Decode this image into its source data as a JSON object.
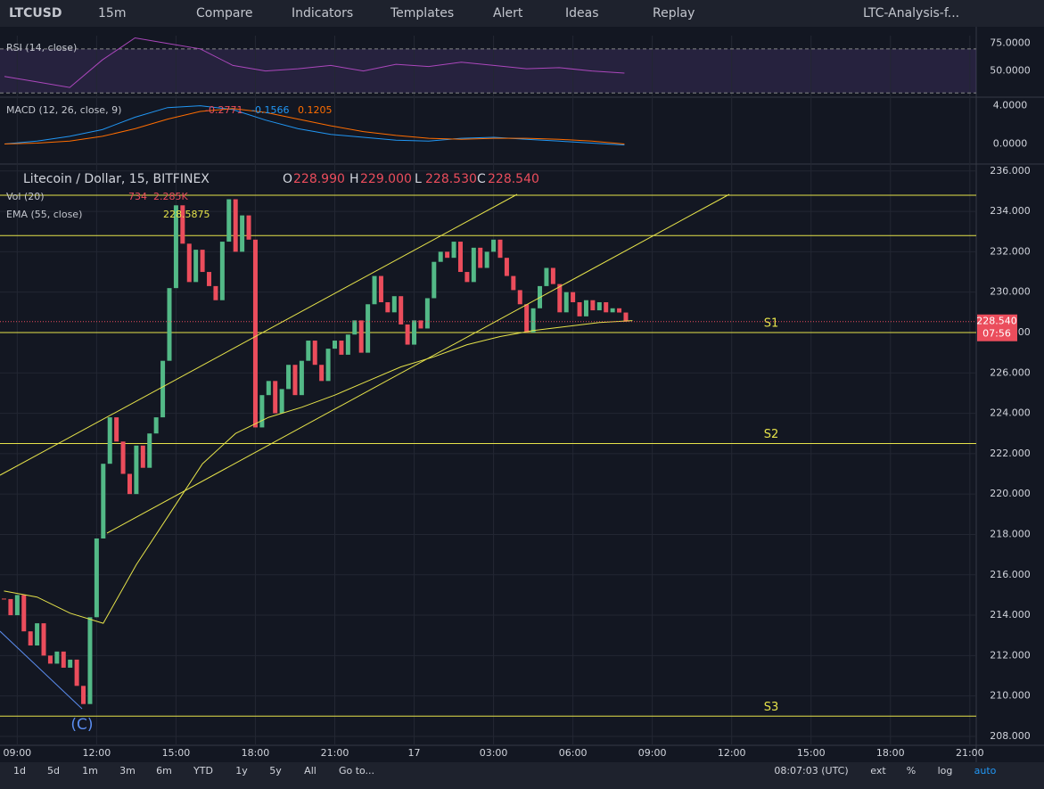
{
  "toolbar": {
    "symbol": "LTCUSD",
    "interval": "15m",
    "items": [
      "Compare",
      "Indicators",
      "Templates",
      "Alert",
      "Ideas",
      "Replay"
    ],
    "layout": "LTC-Analysis-f..."
  },
  "rsi": {
    "title": "RSI (14, close)",
    "values": [
      45,
      40,
      35,
      60,
      80,
      75,
      70,
      55,
      50,
      52,
      55,
      50,
      56,
      54,
      58,
      55,
      52,
      53,
      50,
      48
    ],
    "ylim": [
      27,
      82
    ],
    "yticks": [
      {
        "value": 75,
        "label": "75.0000"
      },
      {
        "value": 50,
        "label": "50.0000"
      }
    ],
    "bands": [
      30,
      70
    ]
  },
  "macd": {
    "title": "MACD (12, 26, close, 9)",
    "readings": [
      "-0.2771",
      "-0.1566",
      "0.1205"
    ],
    "macd": [
      0,
      0.3,
      0.8,
      1.5,
      2.8,
      3.8,
      4.0,
      3.6,
      2.5,
      1.6,
      1.0,
      0.7,
      0.4,
      0.3,
      0.6,
      0.7,
      0.5,
      0.3,
      0.1,
      -0.1
    ],
    "signal": [
      0,
      0.1,
      0.3,
      0.8,
      1.6,
      2.6,
      3.4,
      3.7,
      3.3,
      2.6,
      1.9,
      1.3,
      0.9,
      0.6,
      0.5,
      0.6,
      0.6,
      0.5,
      0.3,
      0.0
    ],
    "ylim": [
      -2,
      4.8
    ],
    "yticks": [
      {
        "value": 4,
        "label": "4.0000"
      },
      {
        "value": 0,
        "label": "0.0000"
      }
    ]
  },
  "chart": {
    "title": "Litecoin / Dollar, 15, BITFINEX",
    "ohlc": [
      {
        "key": "O",
        "value": "228.990"
      },
      {
        "key": "H",
        "value": "229.000"
      },
      {
        "key": "L",
        "value": "228.530"
      },
      {
        "key": "C",
        "value": "228.540"
      }
    ],
    "volume": {
      "title": "Vol (20)",
      "readings": [
        "734",
        "2.285K"
      ]
    },
    "ema": {
      "title": "EMA (55, close)",
      "reading": "228.5875",
      "values": [
        215.2,
        214.9,
        214.1,
        213.6,
        216.5,
        219.0,
        221.5,
        223.0,
        223.8,
        224.3,
        224.9,
        225.6,
        226.3,
        226.8,
        227.4,
        227.8,
        228.1,
        228.3,
        228.5,
        228.59
      ]
    },
    "close": [
      214.8,
      214.0,
      215.0,
      213.2,
      212.5,
      213.6,
      212.0,
      211.6,
      212.2,
      211.4,
      211.8,
      210.5,
      209.6,
      213.9,
      217.8,
      221.5,
      223.8,
      222.6,
      221.0,
      220.0,
      222.4,
      221.3,
      223.0,
      223.8,
      226.6,
      230.2,
      234.3,
      232.4,
      230.5,
      232.1,
      231.0,
      230.3,
      229.6,
      232.5,
      234.6,
      232.0,
      233.8,
      232.6,
      223.3,
      224.9,
      225.6,
      224.0,
      225.2,
      226.4,
      224.9,
      226.6,
      227.6,
      226.4,
      225.6,
      227.2,
      227.6,
      226.9,
      227.9,
      228.6,
      227.0,
      229.4,
      230.8,
      229.5,
      229.0,
      229.8,
      228.4,
      227.4,
      228.6,
      228.2,
      229.7,
      231.5,
      232.0,
      231.7,
      232.5,
      231.0,
      230.5,
      232.2,
      231.2,
      232.0,
      232.6,
      231.7,
      230.8,
      230.1,
      229.4,
      228.0,
      229.2,
      230.3,
      231.2,
      230.4,
      229.0,
      230.0,
      229.5,
      228.8,
      229.6,
      229.1,
      229.5,
      229.0,
      229.2,
      228.99,
      228.54
    ],
    "ylim": [
      207.6,
      236.3
    ],
    "yticks": [
      {
        "value": 236,
        "label": "236.000"
      },
      {
        "value": 234,
        "label": "234.000"
      },
      {
        "value": 232,
        "label": "232.000"
      },
      {
        "value": 230,
        "label": "230.000"
      },
      {
        "value": 228,
        "label": "228.000"
      },
      {
        "value": 226,
        "label": "226.000"
      },
      {
        "value": 224,
        "label": "224.000"
      },
      {
        "value": 222,
        "label": "222.000"
      },
      {
        "value": 220,
        "label": "220.000"
      },
      {
        "value": 218,
        "label": "218.000"
      },
      {
        "value": 216,
        "label": "216.000"
      },
      {
        "value": 214,
        "label": "214.000"
      },
      {
        "value": 212,
        "label": "212.000"
      },
      {
        "value": 210,
        "label": "210.000"
      },
      {
        "value": 208,
        "label": "208.000"
      }
    ],
    "time_ticks": [
      "09:00",
      "12:00",
      "15:00",
      "18:00",
      "21:00",
      "17",
      "03:00",
      "06:00",
      "09:00",
      "12:00",
      "15:00",
      "18:00",
      "21:00"
    ],
    "lines": [
      234.8,
      232.8
    ],
    "levels": [
      {
        "label": "S1",
        "price": 228.0
      },
      {
        "label": "S2",
        "price": 222.5
      },
      {
        "label": "S3",
        "price": 209.0
      }
    ],
    "last_price": {
      "label": "228.540",
      "countdown": "07:56"
    },
    "wave_label": "(C)"
  },
  "footer": {
    "ranges": [
      "1d",
      "5d",
      "1m",
      "3m",
      "6m",
      "YTD",
      "1y",
      "5y",
      "All",
      "Go to..."
    ],
    "clock": "08:07:03 (UTC)",
    "options": [
      "ext",
      "%",
      "log",
      "auto"
    ]
  }
}
